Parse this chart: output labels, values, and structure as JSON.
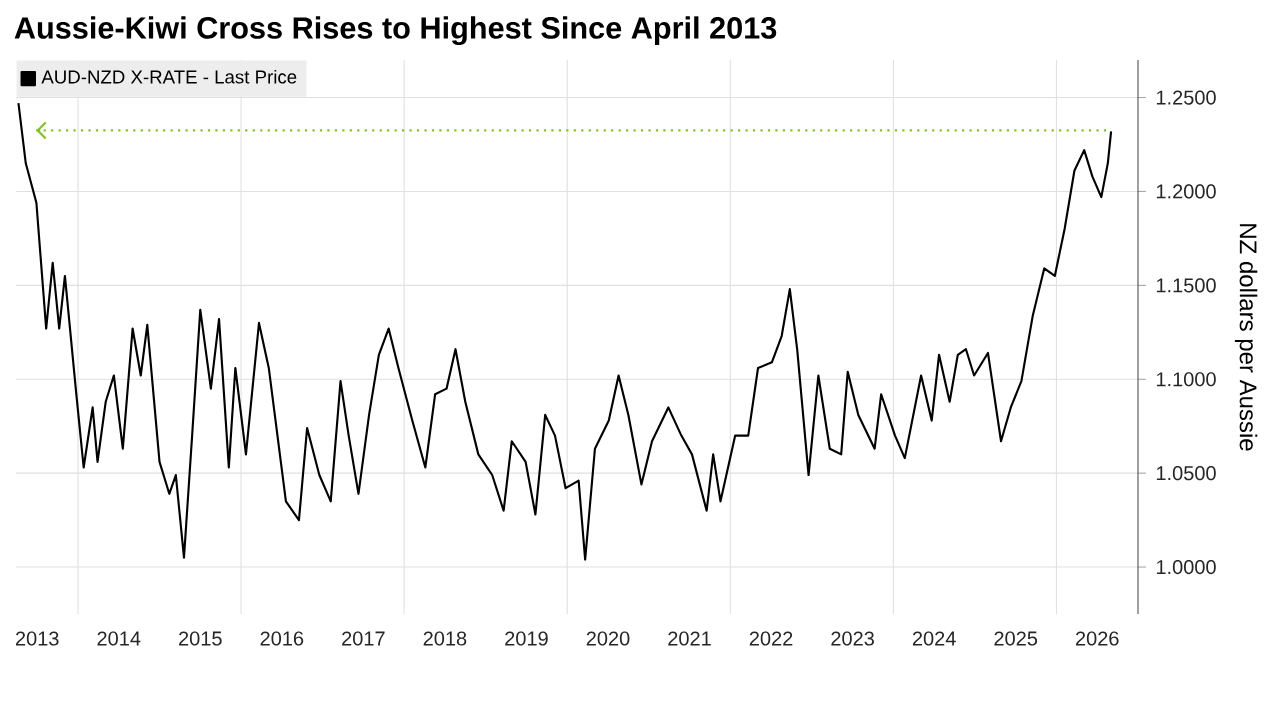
{
  "chart_data": {
    "type": "line",
    "title": "Aussie-Kiwi Cross Rises to Highest Since April 2013",
    "ylabel": "NZ dollars per Aussie",
    "series": [
      {
        "name": "AUD-NZD X-RATE - Last Price",
        "color": "#000000",
        "x": [
          2013.27,
          2013.36,
          2013.49,
          2013.61,
          2013.69,
          2013.77,
          2013.84,
          2013.98,
          2014.07,
          2014.18,
          2014.24,
          2014.34,
          2014.44,
          2014.55,
          2014.67,
          2014.77,
          2014.85,
          2015.0,
          2015.12,
          2015.2,
          2015.3,
          2015.4,
          2015.5,
          2015.63,
          2015.73,
          2015.85,
          2015.93,
          2016.06,
          2016.22,
          2016.34,
          2016.55,
          2016.71,
          2016.81,
          2016.96,
          2017.1,
          2017.22,
          2017.32,
          2017.44,
          2017.57,
          2017.69,
          2017.81,
          2017.93,
          2018.1,
          2018.26,
          2018.38,
          2018.52,
          2018.63,
          2018.75,
          2018.91,
          2019.08,
          2019.22,
          2019.32,
          2019.49,
          2019.61,
          2019.73,
          2019.85,
          2019.98,
          2020.14,
          2020.22,
          2020.34,
          2020.51,
          2020.63,
          2020.75,
          2020.91,
          2021.04,
          2021.24,
          2021.4,
          2021.53,
          2021.71,
          2021.79,
          2021.88,
          2022.06,
          2022.22,
          2022.34,
          2022.51,
          2022.63,
          2022.73,
          2022.82,
          2022.96,
          2023.08,
          2023.22,
          2023.36,
          2023.44,
          2023.57,
          2023.77,
          2023.85,
          2024.02,
          2024.14,
          2024.34,
          2024.47,
          2024.56,
          2024.69,
          2024.79,
          2024.89,
          2024.99,
          2025.16,
          2025.32,
          2025.44,
          2025.57,
          2025.71,
          2025.85,
          2025.98,
          2026.1,
          2026.22,
          2026.34,
          2026.44,
          2026.55,
          2026.63,
          2026.67
        ],
        "values": [
          1.247,
          1.215,
          1.194,
          1.127,
          1.162,
          1.127,
          1.155,
          1.092,
          1.053,
          1.085,
          1.056,
          1.088,
          1.102,
          1.063,
          1.127,
          1.102,
          1.129,
          1.056,
          1.039,
          1.049,
          1.005,
          1.07,
          1.137,
          1.095,
          1.132,
          1.053,
          1.106,
          1.06,
          1.13,
          1.106,
          1.035,
          1.025,
          1.074,
          1.049,
          1.035,
          1.099,
          1.07,
          1.039,
          1.081,
          1.113,
          1.127,
          1.106,
          1.078,
          1.053,
          1.092,
          1.095,
          1.116,
          1.088,
          1.06,
          1.049,
          1.03,
          1.067,
          1.056,
          1.028,
          1.081,
          1.07,
          1.042,
          1.046,
          1.004,
          1.063,
          1.078,
          1.102,
          1.081,
          1.044,
          1.067,
          1.085,
          1.07,
          1.06,
          1.03,
          1.06,
          1.035,
          1.07,
          1.07,
          1.106,
          1.109,
          1.123,
          1.148,
          1.116,
          1.049,
          1.102,
          1.063,
          1.06,
          1.104,
          1.081,
          1.063,
          1.092,
          1.07,
          1.058,
          1.102,
          1.078,
          1.113,
          1.088,
          1.113,
          1.116,
          1.102,
          1.114,
          1.067,
          1.085,
          1.099,
          1.134,
          1.159,
          1.155,
          1.18,
          1.211,
          1.222,
          1.208,
          1.197,
          1.215,
          1.232
        ]
      }
    ],
    "xlim": [
      2013.24,
      2027.0
    ],
    "xticks": [
      {
        "value": 2013.5,
        "label": "2013"
      },
      {
        "value": 2014.5,
        "label": "2014"
      },
      {
        "value": 2015.5,
        "label": "2015"
      },
      {
        "value": 2016.5,
        "label": "2016"
      },
      {
        "value": 2017.5,
        "label": "2017"
      },
      {
        "value": 2018.5,
        "label": "2018"
      },
      {
        "value": 2019.5,
        "label": "2019"
      },
      {
        "value": 2020.5,
        "label": "2020"
      },
      {
        "value": 2021.5,
        "label": "2021"
      },
      {
        "value": 2022.5,
        "label": "2022"
      },
      {
        "value": 2023.5,
        "label": "2023"
      },
      {
        "value": 2024.5,
        "label": "2024"
      },
      {
        "value": 2025.5,
        "label": "2025"
      },
      {
        "value": 2026.5,
        "label": "2026"
      },
      {
        "value": 2014,
        "label": null
      },
      {
        "value": 2016,
        "label": null
      },
      {
        "value": 2018,
        "label": null
      },
      {
        "value": 2020,
        "label": null
      },
      {
        "value": 2022,
        "label": null
      },
      {
        "value": 2024,
        "label": null
      },
      {
        "value": 2026,
        "label": null
      }
    ],
    "ylim": [
      0.975,
      1.27
    ],
    "yticks": [
      {
        "value": 1.0,
        "label": "1.0000"
      },
      {
        "value": 1.05,
        "label": "1.0500"
      },
      {
        "value": 1.1,
        "label": "1.1000"
      },
      {
        "value": 1.15,
        "label": "1.1500"
      },
      {
        "value": 1.2,
        "label": "1.2000"
      },
      {
        "value": 1.25,
        "label": "1.2500"
      }
    ],
    "ref_lines": [
      {
        "axis": "y",
        "value": 1.2325,
        "color": "#7fc31c",
        "line_style": "dotted"
      }
    ],
    "grid": true,
    "legend": "top left"
  }
}
